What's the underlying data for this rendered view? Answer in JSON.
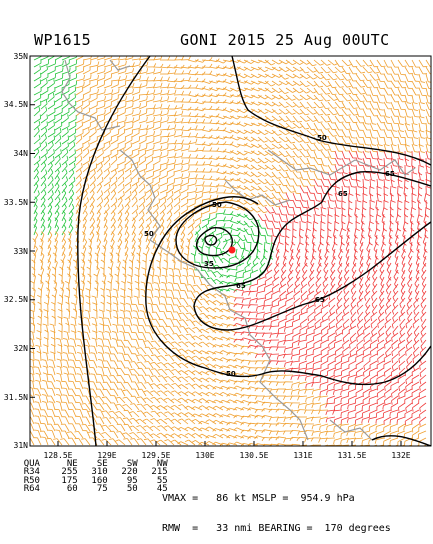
{
  "header": {
    "storm_id": "WP1615",
    "title": "GONI 2015 25 Aug 00UTC"
  },
  "map": {
    "lat_ticks": [
      "35N",
      "34.5N",
      "34N",
      "33.5N",
      "33N",
      "32.5N",
      "32N",
      "31.5N",
      "31N"
    ],
    "lon_ticks": [
      "128.5E",
      "129E",
      "129.5E",
      "130E",
      "130.5E",
      "131E",
      "131.5E",
      "132E"
    ],
    "contour_labels": [
      "50",
      "65",
      "35",
      "65",
      "65",
      "50",
      "50",
      "65"
    ],
    "wind_colors": {
      "green": "#22c43a",
      "orange": "#f0a030",
      "red": "#f03c3c",
      "coast": "#9a9a9a",
      "contour": "#000000",
      "center": "#ff2020"
    }
  },
  "wind_radii": {
    "headers": [
      "QUA",
      "NE",
      "SE",
      "SW",
      "NW"
    ],
    "rows": [
      [
        "R34",
        "255",
        "310",
        "220",
        "215"
      ],
      [
        "R50",
        "175",
        "160",
        "95",
        "55"
      ],
      [
        "R64",
        "60",
        "75",
        "50",
        "45"
      ]
    ]
  },
  "info": {
    "line1": "VMAX =   86 kt MSLP =  954.9 hPa",
    "line2": "RMW  =   33 nmi BEARING =  170 degrees"
  }
}
